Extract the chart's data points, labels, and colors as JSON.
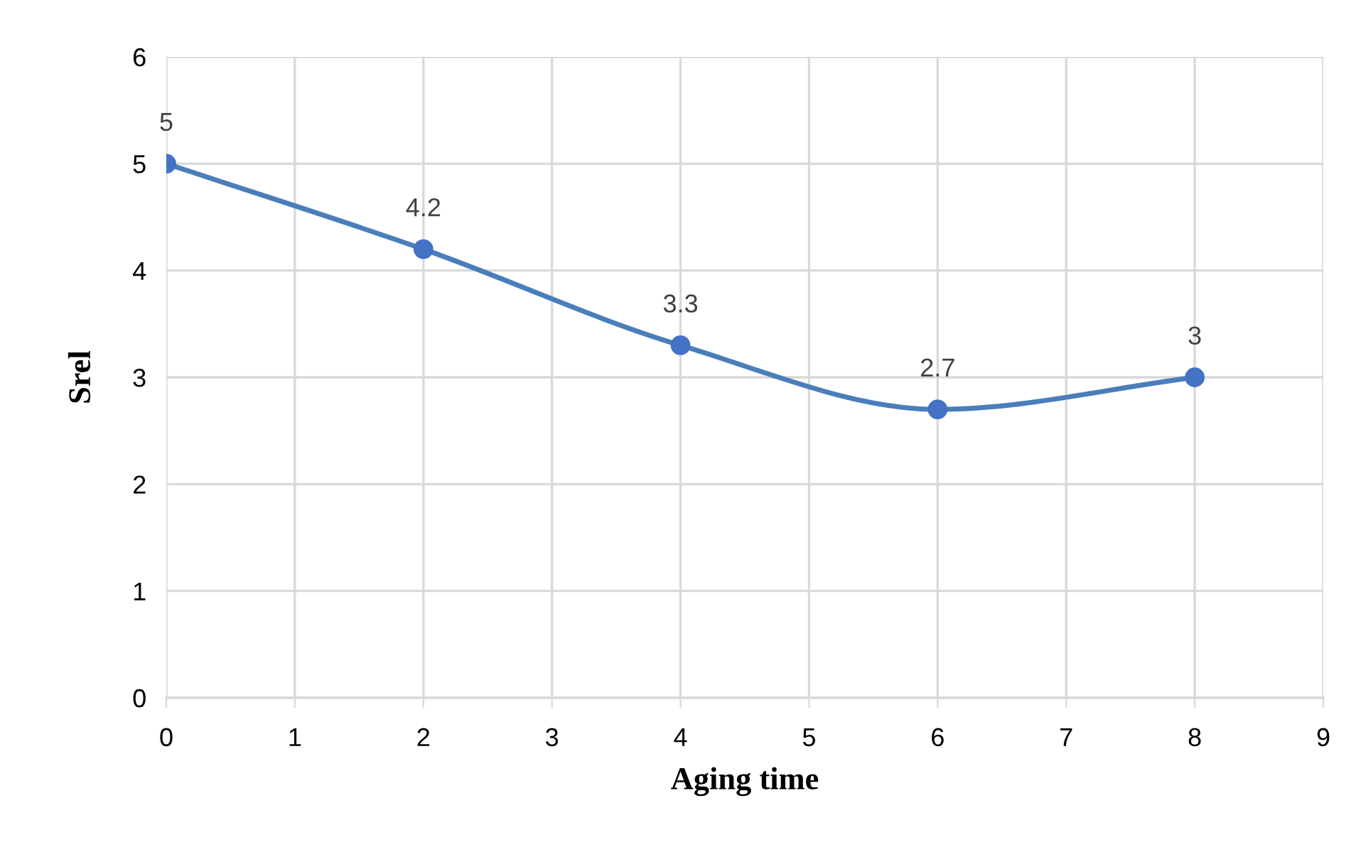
{
  "chart_data": {
    "type": "line",
    "xlabel": "Aging time",
    "ylabel": "Srel",
    "x": [
      0,
      2,
      4,
      6,
      8
    ],
    "series": [
      {
        "color": "#4a7ebb",
        "values": [
          5,
          4.2,
          3.3,
          2.7,
          3
        ]
      }
    ],
    "xlim": [
      0,
      9
    ],
    "xticks": [
      0,
      1,
      2,
      3,
      4,
      5,
      6,
      7,
      8,
      9
    ],
    "ylim": [
      0,
      6
    ],
    "yticks": [
      0,
      1,
      2,
      3,
      4,
      5,
      6
    ],
    "grid": true,
    "marker": "circle",
    "line_style": "solid",
    "data_labels": true,
    "legend": false
  }
}
